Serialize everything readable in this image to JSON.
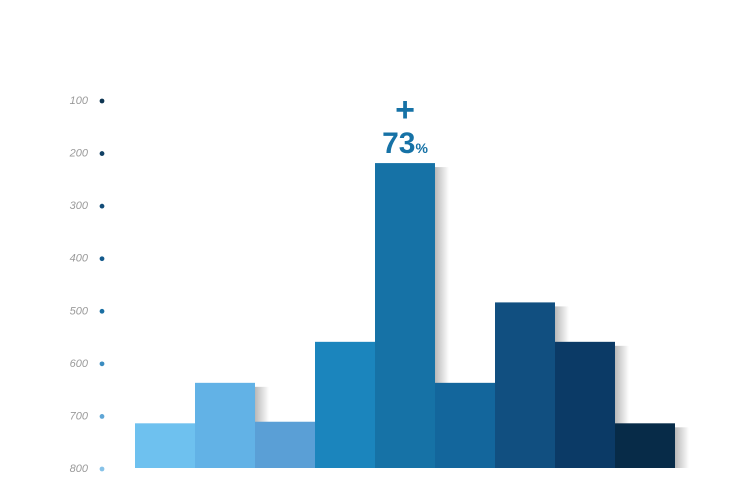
{
  "chart_data": {
    "type": "bar",
    "y_ticks": [
      "100",
      "200",
      "300",
      "400",
      "500",
      "600",
      "700",
      "800"
    ],
    "y_tick_colors": [
      "#0e3552",
      "#104064",
      "#124c78",
      "#145a8c",
      "#1a6fa3",
      "#3b8cc0",
      "#5fa6d6",
      "#86c2e8"
    ],
    "values": [
      715,
      638,
      712,
      560,
      220,
      638,
      485,
      560,
      715
    ],
    "ylim": [
      800,
      100
    ],
    "bar_colors": [
      "#6ec1ef",
      "#62b2e6",
      "#5a9fd6",
      "#1b85bd",
      "#1672a6",
      "#13669c",
      "#114f80",
      "#0b3a66",
      "#072b48"
    ],
    "callout": {
      "sign": "+",
      "value": "73",
      "unit": "%",
      "color": "#1672a6",
      "bar_index": 4
    }
  }
}
